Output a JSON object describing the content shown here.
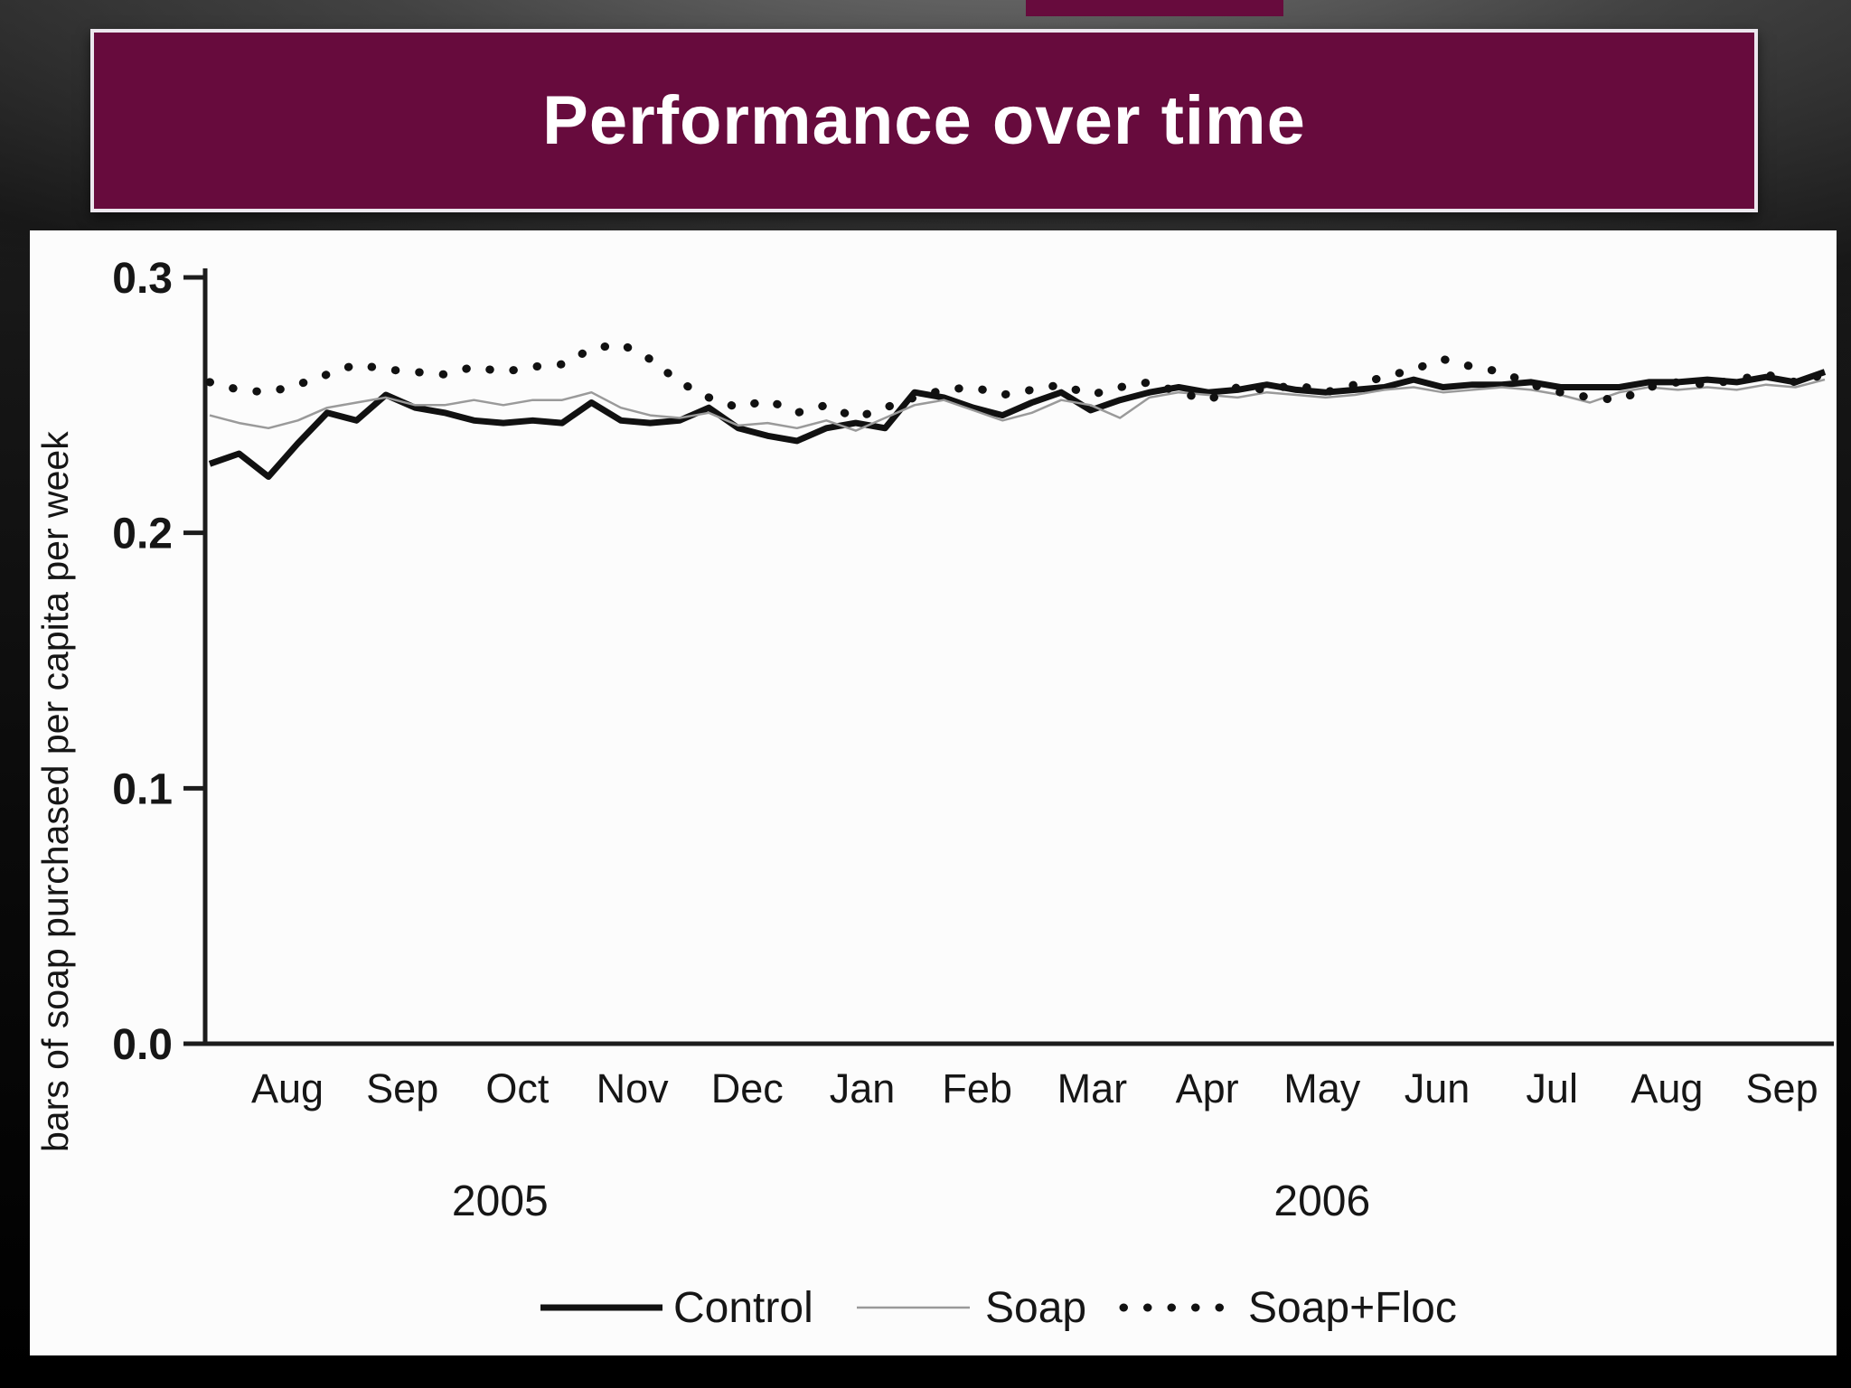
{
  "slide": {
    "title": "Performance over time"
  },
  "colors": {
    "title_bar": "#670b3d",
    "title_text": "#ffffff",
    "panel_bg": "#fcfcfc",
    "control_line": "#111111",
    "soap_line": "#9a9a9a",
    "soap_floc_line": "#111111"
  },
  "chart_data": {
    "type": "line",
    "title": "",
    "xlabel": "",
    "ylabel": "bars of soap purchased per capita per week",
    "ylim": [
      0.0,
      0.3
    ],
    "grid": false,
    "legend_position": "bottom",
    "y_ticks": [
      0.0,
      0.1,
      0.2,
      0.3
    ],
    "y_tick_labels": [
      "0.0",
      "0.1",
      "0.2",
      "0.3"
    ],
    "x_tick_labels": [
      "Aug",
      "Sep",
      "Oct",
      "Nov",
      "Dec",
      "Jan",
      "Feb",
      "Mar",
      "Apr",
      "May",
      "Jun",
      "Jul",
      "Aug",
      "Sep"
    ],
    "year_labels": [
      {
        "text": "2005",
        "month_index": 1.85
      },
      {
        "text": "2006",
        "month_index": 9.0
      }
    ],
    "x_unit": "week",
    "series": [
      {
        "name": "Control",
        "style": "thick-solid",
        "color": "#111111",
        "values": [
          0.227,
          0.231,
          0.222,
          0.235,
          0.247,
          0.244,
          0.254,
          0.249,
          0.247,
          0.244,
          0.243,
          0.244,
          0.243,
          0.251,
          0.244,
          0.243,
          0.244,
          0.249,
          0.241,
          0.238,
          0.236,
          0.241,
          0.243,
          0.241,
          0.255,
          0.253,
          0.249,
          0.246,
          0.251,
          0.255,
          0.248,
          0.252,
          0.255,
          0.257,
          0.255,
          0.256,
          0.258,
          0.256,
          0.255,
          0.256,
          0.257,
          0.26,
          0.257,
          0.258,
          0.258,
          0.259,
          0.257,
          0.257,
          0.257,
          0.259,
          0.259,
          0.26,
          0.259,
          0.261,
          0.259,
          0.263
        ]
      },
      {
        "name": "Soap",
        "style": "thin-solid",
        "color": "#9a9a9a",
        "values": [
          0.246,
          0.243,
          0.241,
          0.244,
          0.249,
          0.251,
          0.253,
          0.25,
          0.25,
          0.252,
          0.25,
          0.252,
          0.252,
          0.255,
          0.249,
          0.246,
          0.245,
          0.247,
          0.242,
          0.243,
          0.241,
          0.244,
          0.24,
          0.245,
          0.25,
          0.252,
          0.248,
          0.244,
          0.247,
          0.252,
          0.25,
          0.245,
          0.253,
          0.255,
          0.254,
          0.253,
          0.255,
          0.254,
          0.253,
          0.254,
          0.256,
          0.257,
          0.255,
          0.256,
          0.257,
          0.256,
          0.254,
          0.251,
          0.255,
          0.257,
          0.256,
          0.257,
          0.256,
          0.258,
          0.257,
          0.26
        ]
      },
      {
        "name": "Soap+Floc",
        "style": "dotted",
        "color": "#111111",
        "values": [
          0.259,
          0.256,
          0.255,
          0.258,
          0.262,
          0.266,
          0.264,
          0.263,
          0.262,
          0.265,
          0.263,
          0.265,
          0.266,
          0.272,
          0.274,
          0.268,
          0.259,
          0.253,
          0.249,
          0.252,
          0.247,
          0.25,
          0.245,
          0.249,
          0.253,
          0.256,
          0.257,
          0.254,
          0.256,
          0.258,
          0.254,
          0.257,
          0.259,
          0.255,
          0.252,
          0.257,
          0.256,
          0.258,
          0.255,
          0.258,
          0.261,
          0.264,
          0.268,
          0.265,
          0.263,
          0.258,
          0.255,
          0.253,
          0.252,
          0.257,
          0.259,
          0.258,
          0.26,
          0.262,
          0.259,
          0.262
        ]
      }
    ]
  }
}
